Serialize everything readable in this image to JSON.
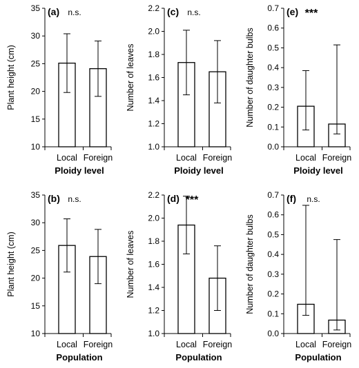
{
  "chart_data": [
    {
      "type": "bar",
      "panel_label": "(a)",
      "significance": "n.s.",
      "categories": [
        "Local",
        "Foreign"
      ],
      "values": [
        25.1,
        24.1
      ],
      "error_low": [
        19.8,
        19.1
      ],
      "error_high": [
        30.4,
        29.1
      ],
      "xlabel": "Ploidy level",
      "ylabel": "Plant height (cm)",
      "ylim": [
        10,
        35
      ],
      "yticks": [
        "10",
        "15",
        "20",
        "25",
        "30",
        "35"
      ]
    },
    {
      "type": "bar",
      "panel_label": "(c)",
      "significance": "n.s.",
      "categories": [
        "Local",
        "Foreign"
      ],
      "values": [
        1.73,
        1.65
      ],
      "error_low": [
        1.45,
        1.38
      ],
      "error_high": [
        2.01,
        1.92
      ],
      "xlabel": "Ploidy level",
      "ylabel": "Number of leaves",
      "ylim": [
        1.0,
        2.2
      ],
      "yticks": [
        "1.0",
        "1.2",
        "1.4",
        "1.6",
        "1.8",
        "2.0",
        "2.2"
      ]
    },
    {
      "type": "bar",
      "panel_label": "(e)",
      "significance": "***",
      "categories": [
        "Local",
        "Foreign"
      ],
      "values": [
        0.205,
        0.115
      ],
      "error_low": [
        0.085,
        0.065
      ],
      "error_high": [
        0.385,
        0.515
      ],
      "xlabel": "Ploidy level",
      "ylabel": "Number of daughter bulbs",
      "ylim": [
        0.0,
        0.7
      ],
      "yticks": [
        "0.0",
        "0.1",
        "0.2",
        "0.3",
        "0.4",
        "0.5",
        "0.6",
        "0.7"
      ]
    },
    {
      "type": "bar",
      "panel_label": "(b)",
      "significance": "n.s.",
      "categories": [
        "Local",
        "Foreign"
      ],
      "values": [
        25.9,
        23.9
      ],
      "error_low": [
        21.1,
        19.0
      ],
      "error_high": [
        30.7,
        28.8
      ],
      "xlabel": "Population",
      "ylabel": "Plant height (cm)",
      "ylim": [
        10,
        35
      ],
      "yticks": [
        "10",
        "15",
        "20",
        "25",
        "30",
        "35"
      ]
    },
    {
      "type": "bar",
      "panel_label": "(d)",
      "significance": "***",
      "categories": [
        "Local",
        "Foreign"
      ],
      "values": [
        1.94,
        1.48
      ],
      "error_low": [
        1.69,
        1.2
      ],
      "error_high": [
        2.19,
        1.76
      ],
      "xlabel": "Population",
      "ylabel": "Number of leaves",
      "ylim": [
        1.0,
        2.2
      ],
      "yticks": [
        "1.0",
        "1.2",
        "1.4",
        "1.6",
        "1.8",
        "2.0",
        "2.2"
      ]
    },
    {
      "type": "bar",
      "panel_label": "(f)",
      "significance": "n.s.",
      "categories": [
        "Local",
        "Foreign"
      ],
      "values": [
        0.148,
        0.068
      ],
      "error_low": [
        0.092,
        0.018
      ],
      "error_high": [
        0.648,
        0.475
      ],
      "xlabel": "Population",
      "ylabel": "Number of daughter bulbs",
      "ylim": [
        0.0,
        0.7
      ],
      "yticks": [
        "0.0",
        "0.1",
        "0.2",
        "0.3",
        "0.4",
        "0.5",
        "0.6",
        "0.7"
      ]
    }
  ]
}
